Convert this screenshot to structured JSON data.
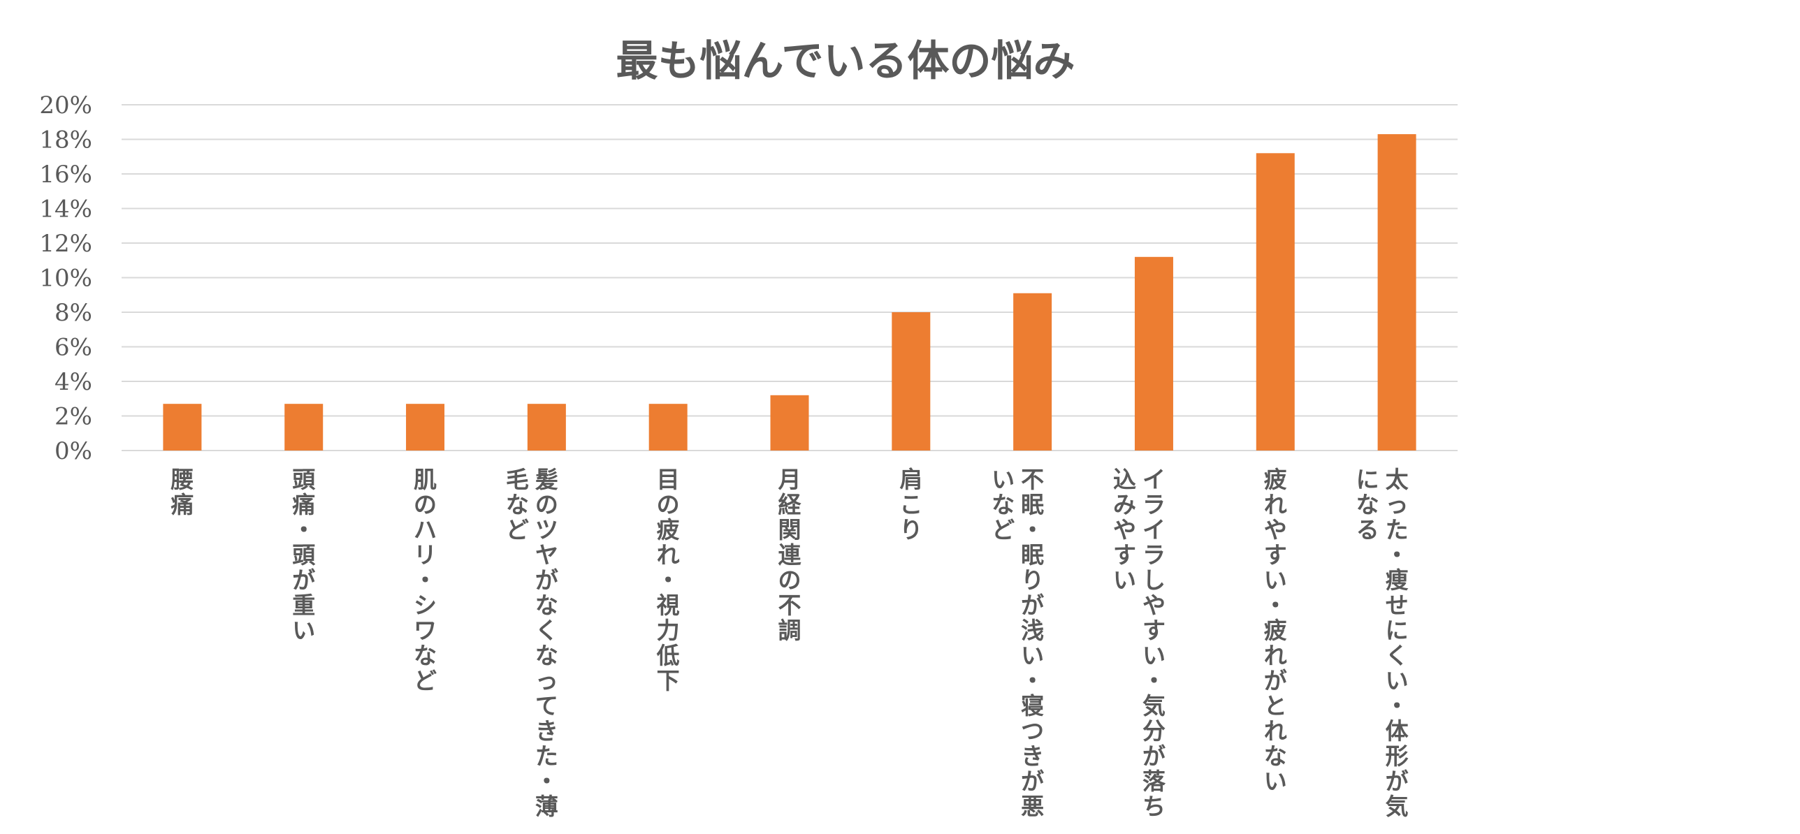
{
  "chart_data": {
    "type": "bar",
    "title": "最も悩んでいる体の悩み",
    "xlabel": "",
    "ylabel": "",
    "ylim": [
      0,
      20
    ],
    "yticks": [
      "0%",
      "2%",
      "4%",
      "6%",
      "8%",
      "10%",
      "12%",
      "14%",
      "16%",
      "18%",
      "20%"
    ],
    "grid": true,
    "bar_color": "#ed7d31",
    "categories": [
      [
        "腰痛"
      ],
      [
        "頭痛・頭が重い"
      ],
      [
        "肌のハリ・シワなど"
      ],
      [
        "髪のツヤがなくなってきた・薄",
        "毛など"
      ],
      [
        "目の疲れ・視力低下"
      ],
      [
        "月経関連の不調"
      ],
      [
        "肩こり"
      ],
      [
        "不眠・眠りが浅い・寝つきが悪",
        "いなど"
      ],
      [
        "イライラしやすい・気分が落ち",
        "込みやすい"
      ],
      [
        "疲れやすい・疲れがとれない"
      ],
      [
        "太った・痩せにくい・体形が気",
        "になる"
      ]
    ],
    "values": [
      2.7,
      2.7,
      2.7,
      2.7,
      2.7,
      3.2,
      8.0,
      9.1,
      11.2,
      17.2,
      18.3
    ]
  }
}
